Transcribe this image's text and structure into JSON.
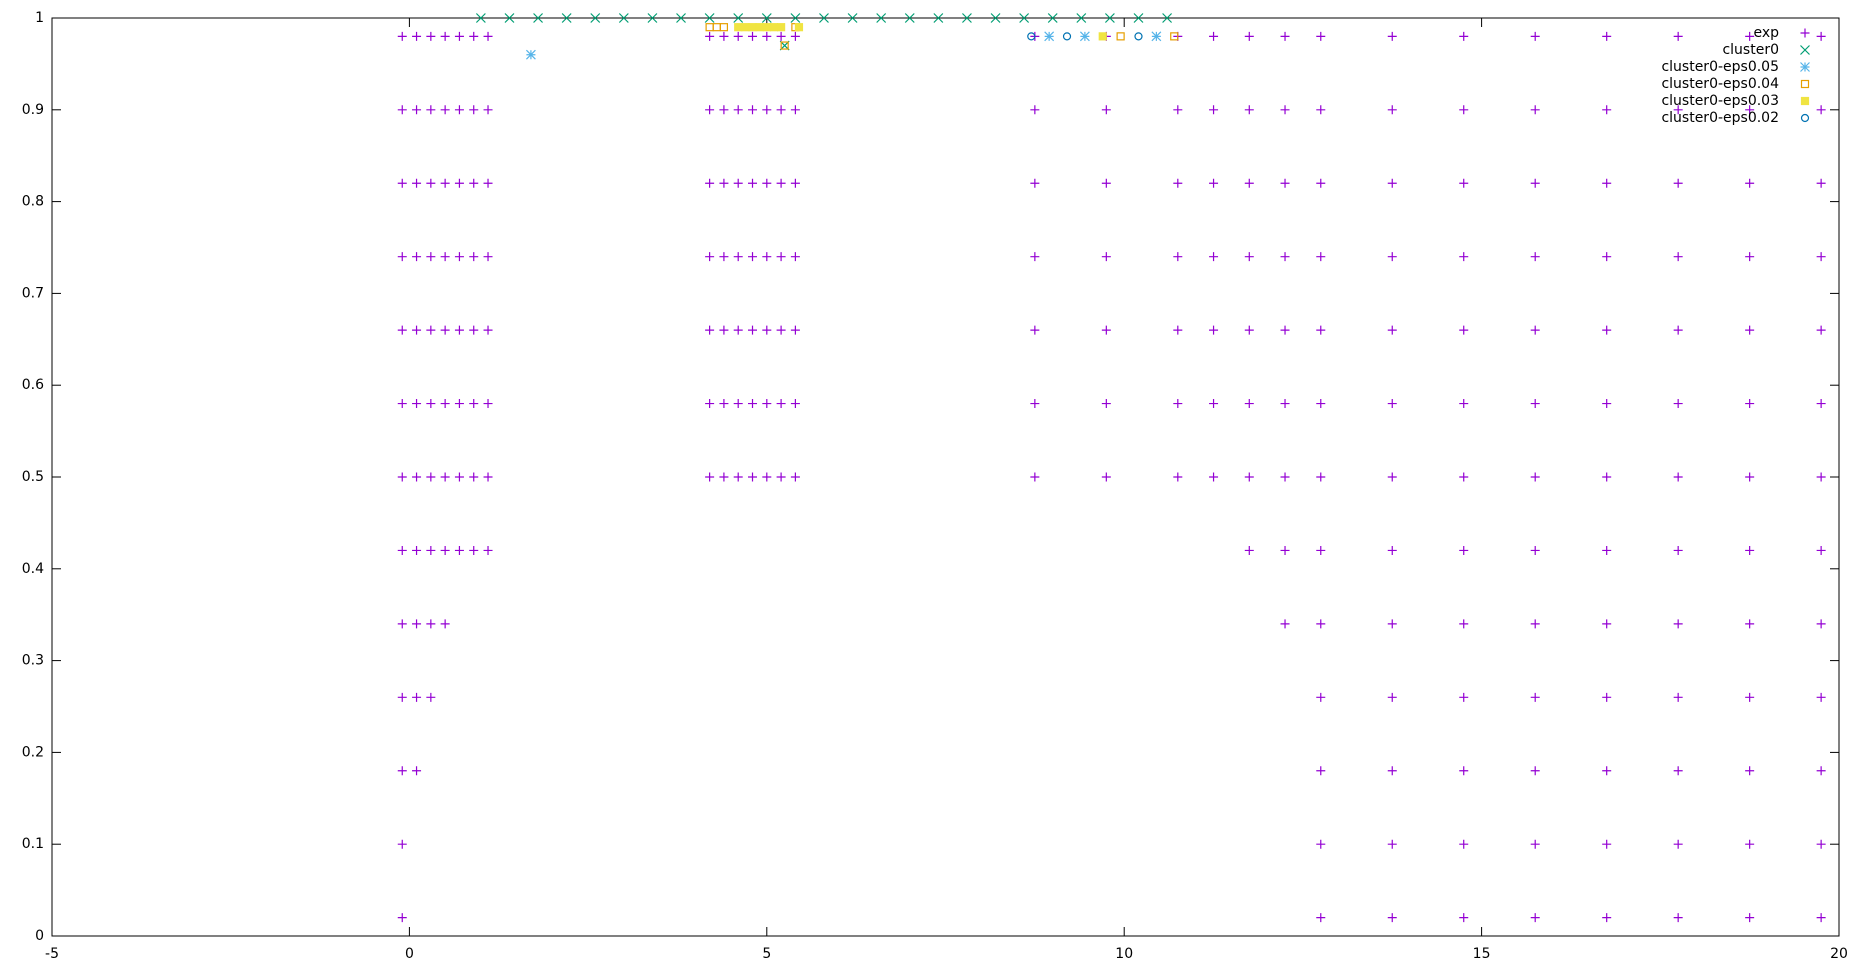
{
  "chart_data": {
    "type": "scatter",
    "xlim": [
      -5,
      20
    ],
    "xticks": [
      -5,
      0,
      5,
      10,
      15,
      20
    ],
    "ylim": [
      0,
      1
    ],
    "yticks": [
      0,
      0.1,
      0.2,
      0.3,
      0.4,
      0.5,
      0.6,
      0.7,
      0.8,
      0.9,
      1
    ],
    "legend": "top right",
    "series": [
      {
        "name": "exp",
        "color": "#9400d3",
        "marker": "plus",
        "x": [
          -0.1,
          -0.1,
          -0.1,
          -0.1,
          -0.1,
          -0.1,
          -0.1,
          -0.1,
          -0.1,
          -0.1,
          -0.1,
          -0.1,
          -0.1,
          0.1,
          0.1,
          0.1,
          0.1,
          0.1,
          0.1,
          0.1,
          0.1,
          0.1,
          0.1,
          0.1,
          0.3,
          0.3,
          0.3,
          0.3,
          0.3,
          0.3,
          0.3,
          0.3,
          0.3,
          0.3,
          0.5,
          0.5,
          0.5,
          0.5,
          0.5,
          0.5,
          0.5,
          0.5,
          0.5,
          0.7,
          0.7,
          0.7,
          0.7,
          0.7,
          0.7,
          0.7,
          0.7,
          0.9,
          0.9,
          0.9,
          0.9,
          0.9,
          0.9,
          0.9,
          0.9,
          1.1,
          1.1,
          1.1,
          1.1,
          1.1,
          1.1,
          1.1,
          1.1,
          4.2,
          4.2,
          4.2,
          4.2,
          4.2,
          4.2,
          4.2,
          4.4,
          4.4,
          4.4,
          4.4,
          4.4,
          4.4,
          4.4,
          4.6,
          4.6,
          4.6,
          4.6,
          4.6,
          4.6,
          4.6,
          4.8,
          4.8,
          4.8,
          4.8,
          4.8,
          4.8,
          4.8,
          5.0,
          5.0,
          5.0,
          5.0,
          5.0,
          5.0,
          5.0,
          5.2,
          5.2,
          5.2,
          5.2,
          5.2,
          5.2,
          5.2,
          5.4,
          5.4,
          5.4,
          5.4,
          5.4,
          5.4,
          5.4,
          8.75,
          8.75,
          8.75,
          8.75,
          8.75,
          8.75,
          8.75,
          9.75,
          9.75,
          9.75,
          9.75,
          9.75,
          9.75,
          9.75,
          10.75,
          10.75,
          10.75,
          10.75,
          10.75,
          10.75,
          10.75,
          11.25,
          11.25,
          11.25,
          11.25,
          11.25,
          11.25,
          11.25,
          11.75,
          11.75,
          11.75,
          11.75,
          11.75,
          11.75,
          11.75,
          11.75,
          12.25,
          12.25,
          12.25,
          12.25,
          12.25,
          12.25,
          12.25,
          12.25,
          12.25,
          12.75,
          12.75,
          12.75,
          12.75,
          12.75,
          12.75,
          12.75,
          12.75,
          12.75,
          12.75,
          12.75,
          12.75,
          12.75,
          13.75,
          13.75,
          13.75,
          13.75,
          13.75,
          13.75,
          13.75,
          13.75,
          13.75,
          13.75,
          13.75,
          13.75,
          13.75,
          14.75,
          14.75,
          14.75,
          14.75,
          14.75,
          14.75,
          14.75,
          14.75,
          14.75,
          14.75,
          14.75,
          14.75,
          14.75,
          15.75,
          15.75,
          15.75,
          15.75,
          15.75,
          15.75,
          15.75,
          15.75,
          15.75,
          15.75,
          15.75,
          15.75,
          15.75,
          16.75,
          16.75,
          16.75,
          16.75,
          16.75,
          16.75,
          16.75,
          16.75,
          16.75,
          16.75,
          16.75,
          16.75,
          16.75,
          17.75,
          17.75,
          17.75,
          17.75,
          17.75,
          17.75,
          17.75,
          17.75,
          17.75,
          17.75,
          17.75,
          17.75,
          17.75,
          18.75,
          18.75,
          18.75,
          18.75,
          18.75,
          18.75,
          18.75,
          18.75,
          18.75,
          18.75,
          18.75,
          18.75,
          18.75,
          19.75,
          19.75,
          19.75,
          19.75,
          19.75,
          19.75,
          19.75,
          19.75,
          19.75,
          19.75,
          19.75,
          19.75,
          19.75
        ],
        "y": [
          0.98,
          0.9,
          0.82,
          0.74,
          0.66,
          0.58,
          0.5,
          0.42,
          0.34,
          0.26,
          0.18,
          0.1,
          0.02,
          0.98,
          0.9,
          0.82,
          0.74,
          0.66,
          0.58,
          0.5,
          0.42,
          0.34,
          0.26,
          0.18,
          0.98,
          0.9,
          0.82,
          0.74,
          0.66,
          0.58,
          0.5,
          0.42,
          0.34,
          0.26,
          0.98,
          0.9,
          0.82,
          0.74,
          0.66,
          0.58,
          0.5,
          0.42,
          0.34,
          0.98,
          0.9,
          0.82,
          0.74,
          0.66,
          0.58,
          0.5,
          0.42,
          0.98,
          0.9,
          0.82,
          0.74,
          0.66,
          0.58,
          0.5,
          0.42,
          0.98,
          0.9,
          0.82,
          0.74,
          0.66,
          0.58,
          0.5,
          0.42,
          0.98,
          0.9,
          0.82,
          0.74,
          0.66,
          0.58,
          0.5,
          0.98,
          0.9,
          0.82,
          0.74,
          0.66,
          0.58,
          0.5,
          0.98,
          0.9,
          0.82,
          0.74,
          0.66,
          0.58,
          0.5,
          0.98,
          0.9,
          0.82,
          0.74,
          0.66,
          0.58,
          0.5,
          0.98,
          0.9,
          0.82,
          0.74,
          0.66,
          0.58,
          0.5,
          0.98,
          0.9,
          0.82,
          0.74,
          0.66,
          0.58,
          0.5,
          0.98,
          0.9,
          0.82,
          0.74,
          0.66,
          0.58,
          0.5,
          0.98,
          0.9,
          0.82,
          0.74,
          0.66,
          0.58,
          0.5,
          0.98,
          0.9,
          0.82,
          0.74,
          0.66,
          0.58,
          0.5,
          0.98,
          0.9,
          0.82,
          0.74,
          0.66,
          0.58,
          0.5,
          0.98,
          0.9,
          0.82,
          0.74,
          0.66,
          0.58,
          0.5,
          0.98,
          0.9,
          0.82,
          0.74,
          0.66,
          0.58,
          0.5,
          0.42,
          0.98,
          0.9,
          0.82,
          0.74,
          0.66,
          0.58,
          0.5,
          0.42,
          0.34,
          0.98,
          0.9,
          0.82,
          0.74,
          0.66,
          0.58,
          0.5,
          0.42,
          0.34,
          0.26,
          0.18,
          0.1,
          0.02,
          0.98,
          0.9,
          0.82,
          0.74,
          0.66,
          0.58,
          0.5,
          0.42,
          0.34,
          0.26,
          0.18,
          0.1,
          0.02,
          0.98,
          0.9,
          0.82,
          0.74,
          0.66,
          0.58,
          0.5,
          0.42,
          0.34,
          0.26,
          0.18,
          0.1,
          0.02,
          0.98,
          0.9,
          0.82,
          0.74,
          0.66,
          0.58,
          0.5,
          0.42,
          0.34,
          0.26,
          0.18,
          0.1,
          0.02,
          0.98,
          0.9,
          0.82,
          0.74,
          0.66,
          0.58,
          0.5,
          0.42,
          0.34,
          0.26,
          0.18,
          0.1,
          0.02,
          0.98,
          0.9,
          0.82,
          0.74,
          0.66,
          0.58,
          0.5,
          0.42,
          0.34,
          0.26,
          0.18,
          0.1,
          0.02,
          0.98,
          0.9,
          0.82,
          0.74,
          0.66,
          0.58,
          0.5,
          0.42,
          0.34,
          0.26,
          0.18,
          0.1,
          0.02,
          0.98,
          0.9,
          0.82,
          0.74,
          0.66,
          0.58,
          0.5,
          0.42,
          0.34,
          0.26,
          0.18,
          0.1,
          0.02
        ]
      },
      {
        "name": "cluster0",
        "color": "#009e73",
        "marker": "cross",
        "x": [
          1.0,
          1.4,
          1.8,
          2.2,
          2.6,
          3.0,
          3.4,
          3.8,
          4.2,
          4.6,
          5.0,
          5.4,
          5.8,
          6.2,
          6.6,
          7.0,
          7.4,
          7.8,
          8.2,
          8.6,
          9.0,
          9.4,
          9.8,
          10.2,
          10.6,
          5.25
        ],
        "y": [
          1,
          1,
          1,
          1,
          1,
          1,
          1,
          1,
          1,
          1,
          1,
          1,
          1,
          1,
          1,
          1,
          1,
          1,
          1,
          1,
          1,
          1,
          1,
          1,
          1,
          0.97
        ]
      },
      {
        "name": "cluster0-eps0.05",
        "color": "#56b4e9",
        "marker": "star",
        "x": [
          1.7,
          8.95,
          9.45,
          10.45
        ],
        "y": [
          0.96,
          0.98,
          0.98,
          0.98
        ]
      },
      {
        "name": "cluster0-eps0.04",
        "color": "#e69f00",
        "marker": "square",
        "x": [
          4.2,
          4.3,
          4.4,
          5.25,
          5.4,
          9.95,
          10.7
        ],
        "y": [
          0.99,
          0.99,
          0.99,
          0.97,
          0.99,
          0.98,
          0.98
        ]
      },
      {
        "name": "cluster0-eps0.03",
        "color": "#f0e442",
        "marker": "filled-square",
        "x": [
          4.6,
          4.7,
          4.8,
          4.9,
          5.0,
          5.1,
          5.2,
          5.45,
          9.7
        ],
        "y": [
          0.99,
          0.99,
          0.99,
          0.99,
          0.99,
          0.99,
          0.99,
          0.99,
          0.98
        ]
      },
      {
        "name": "cluster0-eps0.02",
        "color": "#0072b2",
        "marker": "circle",
        "x": [
          8.7,
          9.2,
          10.2
        ],
        "y": [
          0.98,
          0.98,
          0.98
        ]
      }
    ]
  }
}
